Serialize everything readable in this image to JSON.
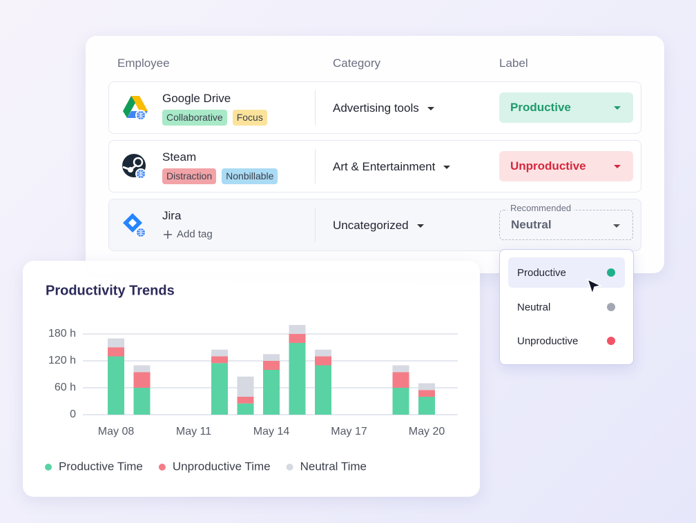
{
  "table": {
    "headers": [
      "Employee",
      "Category",
      "Label"
    ],
    "rows": [
      {
        "name": "Google Drive",
        "tags": [
          "Collaborative",
          "Focus"
        ],
        "category": "Advertising tools",
        "label": "Productive"
      },
      {
        "name": "Steam",
        "tags": [
          "Distraction",
          "Nonbillable"
        ],
        "category": "Art & Entertainment",
        "label": "Unproductive"
      },
      {
        "name": "Jira",
        "add_tag": "Add tag",
        "category": "Uncategorized",
        "label_note": "Recommended",
        "label": "Neutral"
      }
    ]
  },
  "dropdown": {
    "options": [
      "Productive",
      "Neutral",
      "Unproductive"
    ]
  },
  "chart_data": {
    "type": "stacked_bar",
    "title": "Productivity Trends",
    "categories": [
      "May 08",
      null,
      null,
      "May 11",
      null,
      null,
      "May 14",
      null,
      null,
      "May 17",
      null,
      null,
      "May 20"
    ],
    "series": [
      {
        "name": "Productive Time",
        "color": "#5ad3a4",
        "values": [
          130,
          60,
          0,
          0,
          115,
          25,
          100,
          160,
          110,
          0,
          0,
          60,
          40
        ]
      },
      {
        "name": "Unproductive Time",
        "color": "#f47c86",
        "values": [
          20,
          35,
          0,
          0,
          15,
          15,
          20,
          20,
          20,
          0,
          0,
          35,
          15
        ]
      },
      {
        "name": "Neutral Time",
        "color": "#d6d9e2",
        "values": [
          20,
          15,
          0,
          0,
          15,
          45,
          15,
          20,
          15,
          0,
          0,
          15,
          15
        ]
      }
    ],
    "ylim": [
      0,
      200
    ],
    "yticks": [
      0,
      {
        "value": 60,
        "label": "60 h"
      },
      {
        "value": 120,
        "label": "120 h"
      },
      {
        "value": 180,
        "label": "180 h"
      }
    ],
    "grid": true,
    "legend": "bottom"
  }
}
